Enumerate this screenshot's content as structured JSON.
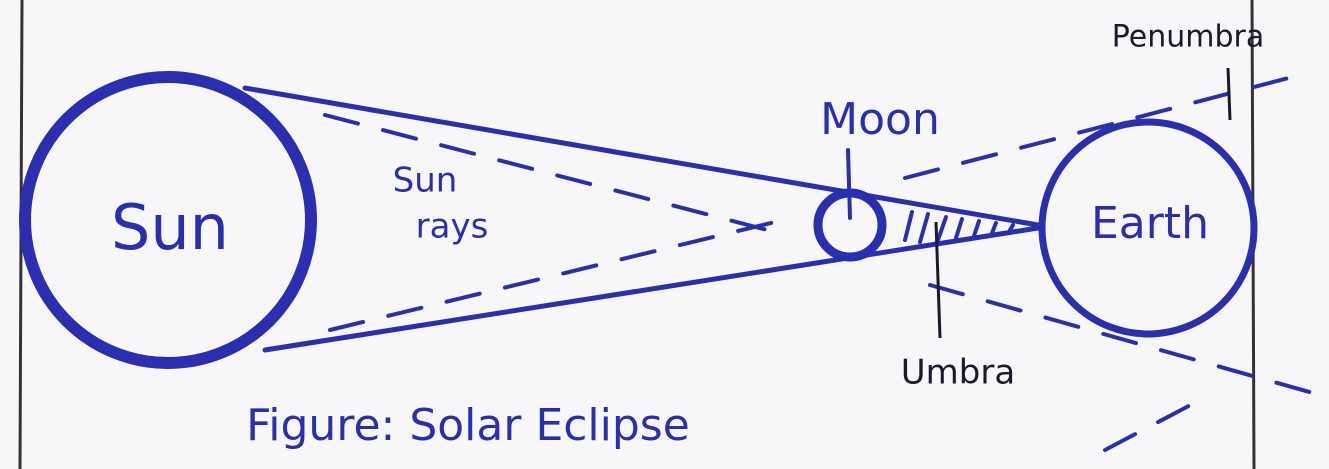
{
  "labels": {
    "sun": "Sun",
    "sun_rays": [
      "Sun",
      "rays"
    ],
    "moon": "Moon",
    "earth": "Earth",
    "umbra": "Umbra",
    "penumbra": "Penumbra"
  },
  "caption": "Figure: Solar Eclipse"
}
